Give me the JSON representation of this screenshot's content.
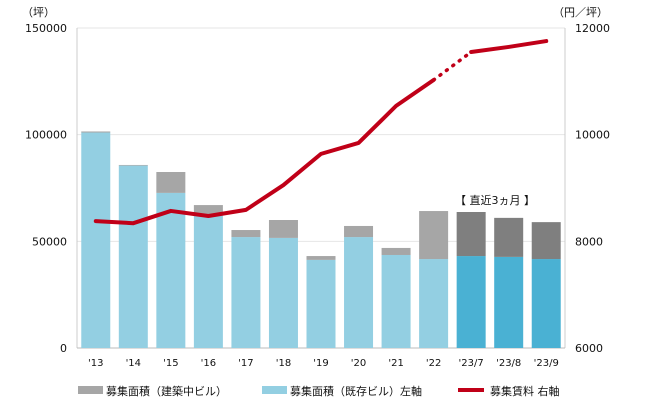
{
  "chart_data": {
    "type": "bar",
    "categories": [
      "'13",
      "'14",
      "'15",
      "'16",
      "'17",
      "'18",
      "'19",
      "'20",
      "'21",
      "'22",
      "'23/7",
      "'23/8",
      "'23/9"
    ],
    "left_axis": {
      "label": "（坪）",
      "ylim": [
        0,
        150000
      ],
      "ticks": [
        "0",
        "50000",
        "100000",
        "150000"
      ]
    },
    "right_axis": {
      "label": "（円／坪）",
      "ylim": [
        6000,
        12000
      ],
      "ticks": [
        "6000",
        "8000",
        "10000",
        "12000"
      ]
    },
    "series": [
      {
        "name": "募集面積（既存ビル）左軸",
        "type": "bar",
        "axis": "left",
        "values": [
          101000,
          85500,
          72700,
          62300,
          52000,
          51600,
          41300,
          52000,
          43600,
          41700,
          43100,
          42700,
          41700
        ],
        "color": "#93cfe2",
        "recent_color": "#4ab1d3"
      },
      {
        "name": "募集面積（建築中ビル）",
        "type": "bar",
        "axis": "left",
        "stacked": true,
        "values": [
          500,
          300,
          9800,
          4700,
          3300,
          8400,
          1800,
          5200,
          3300,
          22500,
          20650,
          18300,
          17300
        ],
        "color": "#a6a6a6",
        "recent_color": "#7f7f7f"
      },
      {
        "name": "募集賃料 右軸",
        "type": "line",
        "axis": "right",
        "values": [
          8380,
          8340,
          8570,
          8475,
          8590,
          9055,
          9640,
          9845,
          10540,
          11025,
          11550,
          11645,
          11755
        ],
        "color": "#c00018"
      }
    ],
    "recent_count": 3,
    "annotation": "【 直近3ヵ月 】",
    "grid": true,
    "legend_position": "bottom"
  }
}
